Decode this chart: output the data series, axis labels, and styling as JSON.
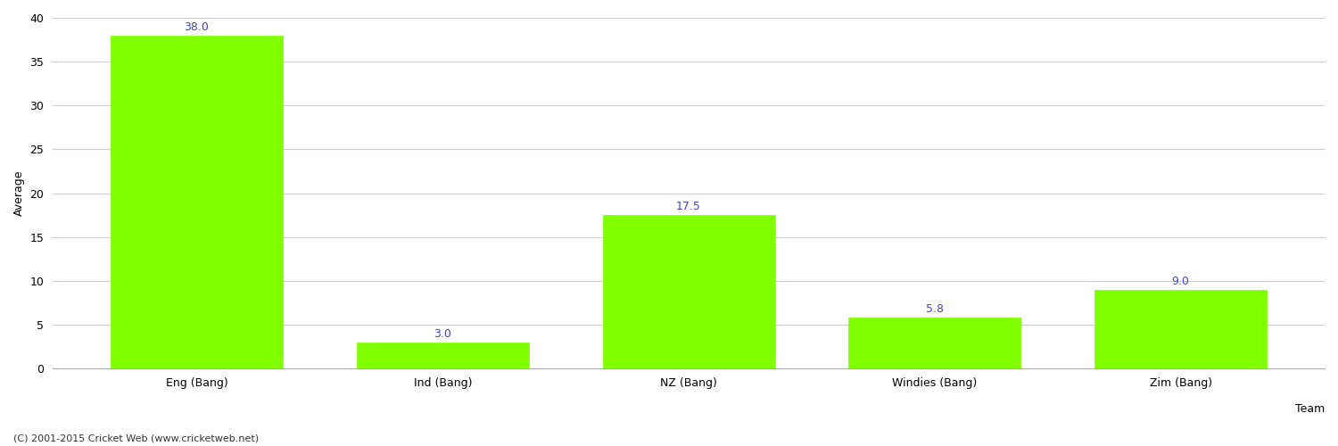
{
  "categories": [
    "Eng (Bang)",
    "Ind (Bang)",
    "NZ (Bang)",
    "Windies (Bang)",
    "Zim (Bang)"
  ],
  "values": [
    38.0,
    3.0,
    17.5,
    5.8,
    9.0
  ],
  "bar_color": "#7fff00",
  "bar_edge_color": "#7fff00",
  "label_color": "#4444cc",
  "xlabel": "Team",
  "ylabel": "Average",
  "ylim": [
    0,
    40
  ],
  "yticks": [
    0,
    5,
    10,
    15,
    20,
    25,
    30,
    35,
    40
  ],
  "background_color": "#ffffff",
  "grid_color": "#cccccc",
  "footer": "(C) 2001-2015 Cricket Web (www.cricketweb.net)",
  "label_fontsize": 9,
  "axis_fontsize": 9,
  "footer_fontsize": 8
}
